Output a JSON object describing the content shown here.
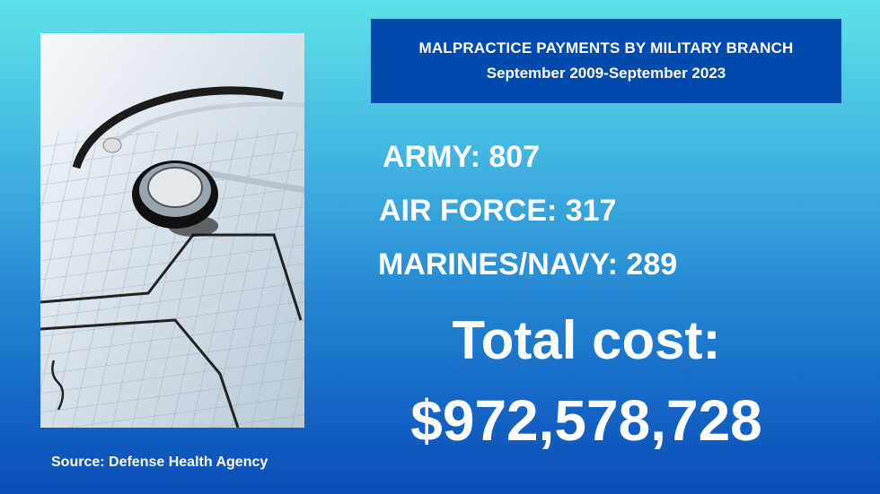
{
  "title": {
    "heading": "MALPRACTICE PAYMENTS BY MILITARY BRANCH",
    "period": "September 2009-September 2023"
  },
  "stats": [
    {
      "label": "ARMY",
      "value": "807",
      "text": "ARMY: 807"
    },
    {
      "label": "AIR FORCE",
      "value": "317",
      "text": "AIR FORCE: 317"
    },
    {
      "label": "MARINES/NAVY",
      "value": "289",
      "text": "MARINES/NAVY: 289"
    }
  ],
  "total": {
    "label": "Total cost:",
    "value": "$972,578,728"
  },
  "source": "Source: Defense Health Agency",
  "colors": {
    "title_box": "#0049ad",
    "background_top": "#5de2e8",
    "background_bottom": "#0a4cb8"
  }
}
